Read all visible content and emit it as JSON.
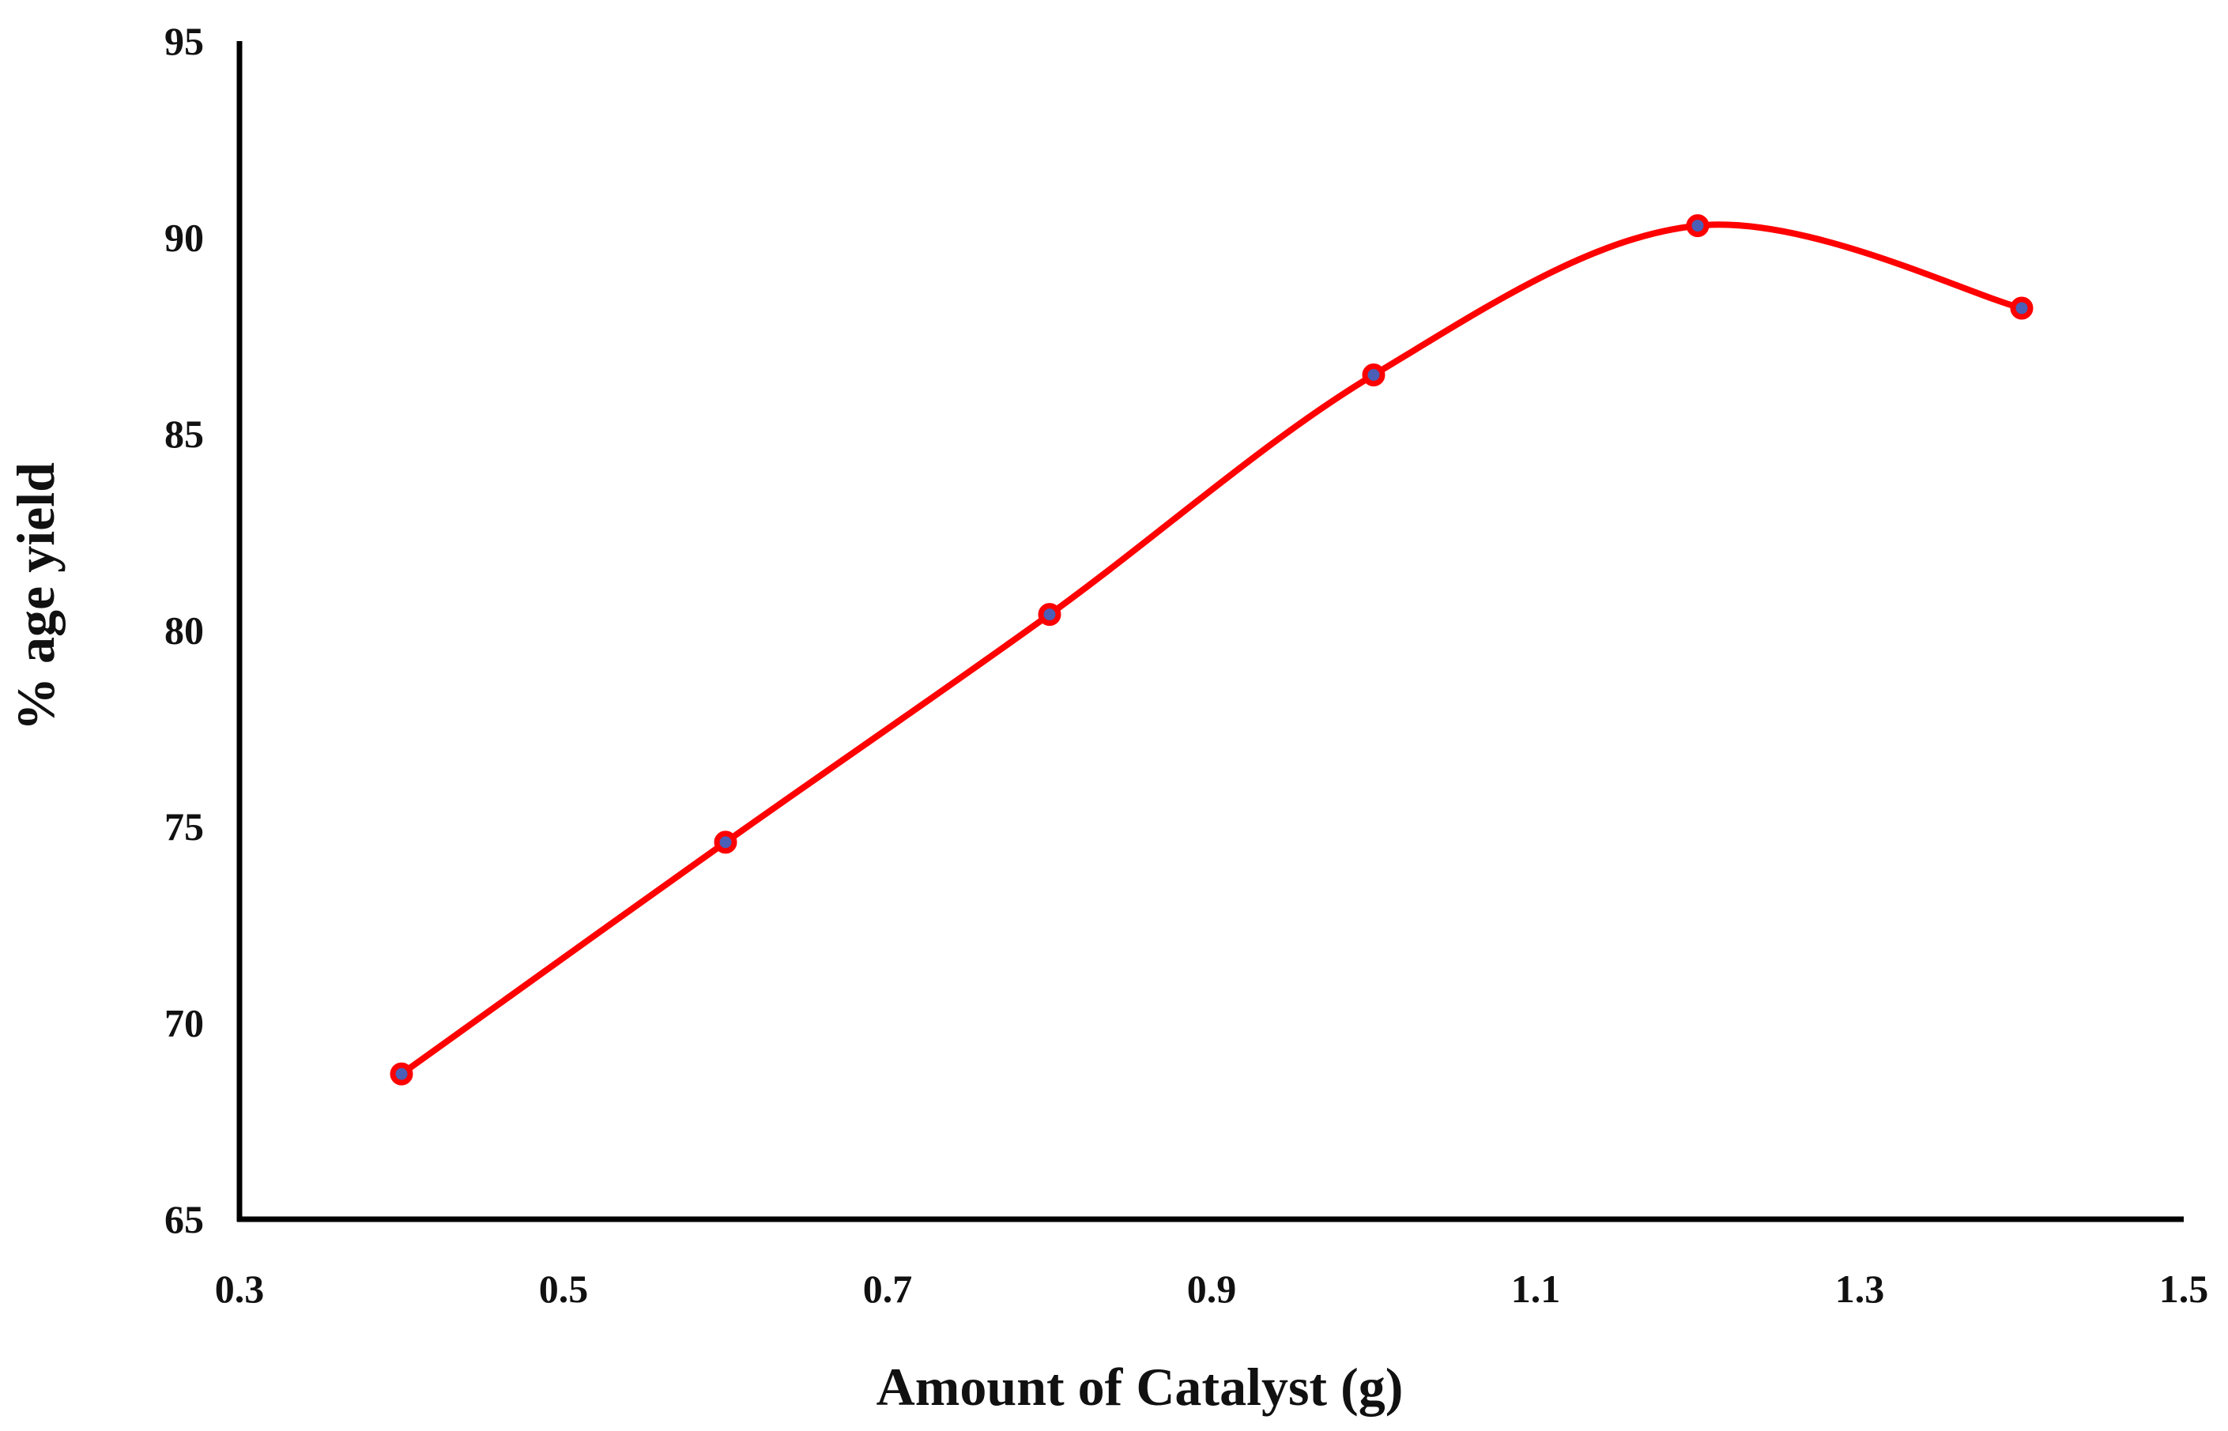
{
  "chart_data": {
    "type": "line",
    "title": "",
    "xlabel": "Amount of Catalyst (g)",
    "ylabel": "% age yield",
    "xlim": [
      0.3,
      1.5
    ],
    "ylim": [
      65,
      95
    ],
    "xticks": [
      "0.3",
      "0.5",
      "0.7",
      "0.9",
      "1.1",
      "1.3",
      "1.5"
    ],
    "yticks": [
      "65",
      "70",
      "75",
      "80",
      "85",
      "90",
      "95"
    ],
    "grid": false,
    "legend": "none",
    "series": [
      {
        "name": "% age yield",
        "color": "#ff0000",
        "marker_color": "#4a5fb5",
        "smooth": true,
        "x": [
          0.4,
          0.6,
          0.8,
          1.0,
          1.2,
          1.4
        ],
        "y": [
          68.7,
          74.6,
          80.4,
          86.5,
          90.3,
          88.2
        ]
      }
    ]
  }
}
